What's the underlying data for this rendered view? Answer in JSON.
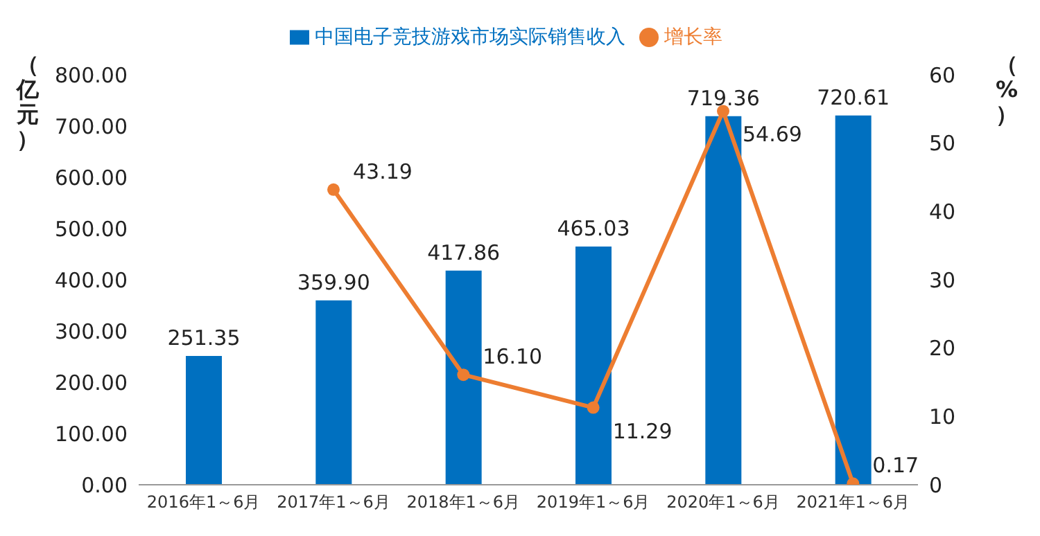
{
  "chart_data": {
    "type": "bar",
    "categories": [
      "2016年1～6月",
      "2017年1～6月",
      "2018年1～6月",
      "2019年1～6月",
      "2020年1～6月",
      "2021年1～6月"
    ],
    "series": [
      {
        "name": "中国电子竞技游戏市场实际销售收入",
        "color": "#0070c0",
        "values": [
          251.35,
          359.9,
          417.86,
          465.03,
          719.36,
          720.61
        ],
        "value_labels": [
          "251.35",
          "359.90",
          "417.86",
          "465.03",
          "719.36",
          "720.61"
        ]
      },
      {
        "name": "增长率",
        "type": "line",
        "axis": "y2",
        "color": "#ed7d31",
        "marker": "circle",
        "values": [
          null,
          43.19,
          16.1,
          11.29,
          54.69,
          0.17
        ],
        "value_labels": [
          null,
          "43.19",
          "16.10",
          "11.29",
          "54.69",
          "0.17"
        ]
      }
    ],
    "ylabel": "（亿元）",
    "y2label": "（%）",
    "ylim": [
      0,
      800
    ],
    "yticks": [
      {
        "value": 0,
        "label": "0.00"
      },
      {
        "value": 100,
        "label": "100.00"
      },
      {
        "value": 200,
        "label": "200.00"
      },
      {
        "value": 300,
        "label": "300.00"
      },
      {
        "value": 400,
        "label": "400.00"
      },
      {
        "value": 500,
        "label": "500.00"
      },
      {
        "value": 600,
        "label": "600.00"
      },
      {
        "value": 700,
        "label": "700.00"
      },
      {
        "value": 800,
        "label": "800.00"
      }
    ],
    "y2lim": [
      0,
      60
    ],
    "y2ticks": [
      0,
      10,
      20,
      30,
      40,
      50,
      60
    ],
    "legend": "top",
    "grid": false
  }
}
